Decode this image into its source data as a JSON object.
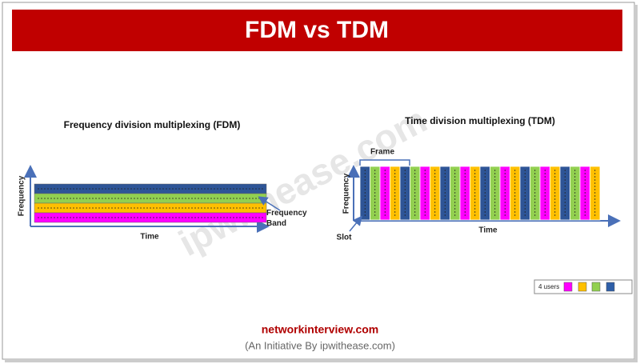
{
  "header": {
    "title": "FDM vs TDM"
  },
  "watermark": "ipwithease.com",
  "fdm": {
    "title": "Frequency division multiplexing (FDM)",
    "y_label": "Frequency",
    "x_label": "Time",
    "band_label": "Frequency Band"
  },
  "tdm": {
    "title": "Time division multiplexing (TDM)",
    "y_label": "Frequency",
    "x_label": "Time",
    "frame_label": "Frame",
    "slot_label": "Slot"
  },
  "legend": {
    "label": "4 users"
  },
  "footer": {
    "site": "networkinterview.com",
    "note": "(An Initiative By ipwithease.com)"
  }
}
